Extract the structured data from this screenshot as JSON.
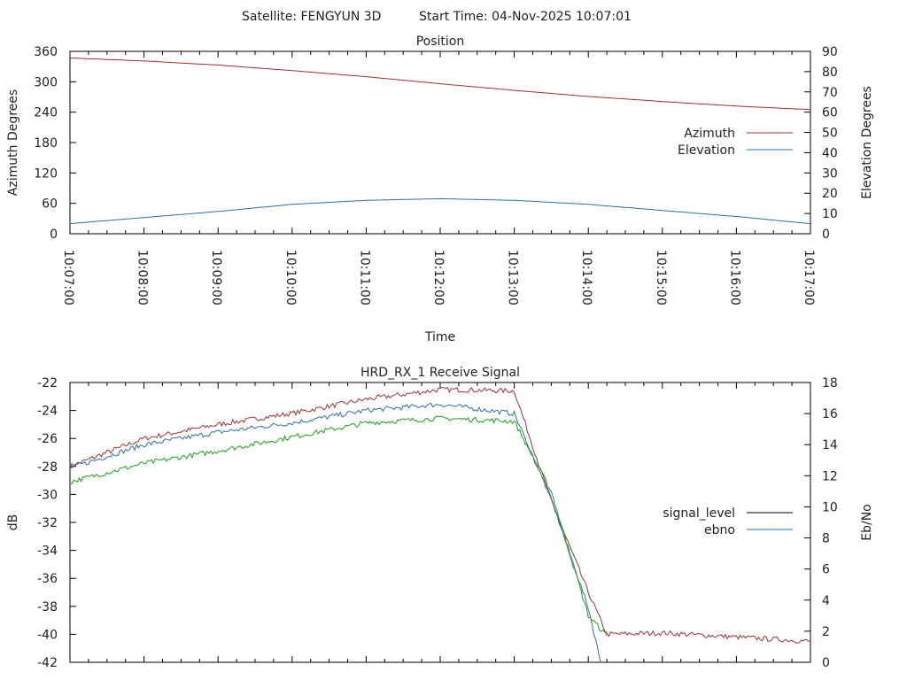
{
  "header": {
    "satellite": "Satellite: FENGYUN 3D",
    "start_time": "Start Time: 04-Nov-2025 10:07:01"
  },
  "chart_data": [
    {
      "type": "line",
      "title": "Position",
      "xlabel": "Time",
      "ylabel_left": "Azimuth Degrees",
      "ylabel_right": "Elevation Degrees",
      "x_ticks": [
        "10:07:00",
        "10:08:00",
        "10:09:00",
        "10:10:00",
        "10:11:00",
        "10:12:00",
        "10:13:00",
        "10:14:00",
        "10:15:00",
        "10:16:00",
        "10:17:00"
      ],
      "y_left_ticks": [
        "0",
        "60",
        "120",
        "180",
        "240",
        "300",
        "360"
      ],
      "y_right_ticks": [
        "0",
        "10",
        "20",
        "30",
        "40",
        "50",
        "60",
        "70",
        "80",
        "90"
      ],
      "ylim_left": [
        0,
        360
      ],
      "ylim_right": [
        0,
        90
      ],
      "x_range": [
        "10:07:00",
        "10:17:00"
      ],
      "grid": false,
      "legend_position": "right",
      "series": [
        {
          "name": "Azimuth",
          "axis": "left",
          "color": "#a03232",
          "x": [
            "10:07:00",
            "10:08:00",
            "10:09:00",
            "10:10:00",
            "10:11:00",
            "10:12:00",
            "10:13:00",
            "10:14:00",
            "10:15:00",
            "10:16:00",
            "10:17:00"
          ],
          "values": [
            347,
            341,
            333,
            322,
            310,
            296,
            283,
            271,
            261,
            252,
            245
          ]
        },
        {
          "name": "Elevation",
          "axis": "right",
          "color": "#2f6fa0",
          "x": [
            "10:07:00",
            "10:08:00",
            "10:09:00",
            "10:10:00",
            "10:11:00",
            "10:12:00",
            "10:13:00",
            "10:14:00",
            "10:15:00",
            "10:16:00",
            "10:17:00"
          ],
          "values": [
            5,
            8,
            11,
            14.5,
            16.5,
            17.3,
            16.5,
            14.5,
            11.5,
            8.5,
            5
          ]
        }
      ]
    },
    {
      "type": "line",
      "title": "HRD_RX_1 Receive Signal",
      "ylabel_left": "dB",
      "ylabel_right": "Eb/No",
      "y_left_ticks": [
        "-22",
        "-24",
        "-26",
        "-28",
        "-30",
        "-32",
        "-34",
        "-36",
        "-38",
        "-40",
        "-42"
      ],
      "y_right_ticks": [
        "0",
        "2",
        "4",
        "6",
        "8",
        "10",
        "12",
        "14",
        "16",
        "18"
      ],
      "ylim_left": [
        -42,
        -22
      ],
      "ylim_right": [
        0,
        18
      ],
      "x_range": [
        "10:07:00",
        "10:17:00"
      ],
      "grid": false,
      "legend_position": "right",
      "legend": [
        {
          "name": "signal_level",
          "color": "#000000"
        },
        {
          "name": "ebno",
          "color": "#2f6fa0"
        }
      ],
      "series": [
        {
          "name": "signal_level",
          "axis": "left",
          "color": "#a03232",
          "x": [
            "10:07:00",
            "10:08:00",
            "10:09:00",
            "10:10:00",
            "10:11:00",
            "10:12:00",
            "10:13:00",
            "10:13:30",
            "10:14:00",
            "10:14:15",
            "10:15:00",
            "10:16:00",
            "10:17:00"
          ],
          "values": [
            -28.0,
            -26.0,
            -25.0,
            -24.2,
            -23.2,
            -22.5,
            -22.6,
            -30.5,
            -37.0,
            -40.0,
            -39.9,
            -40.2,
            -40.5
          ]
        },
        {
          "name": "ebno",
          "axis": "right",
          "color": "#2f6fa0",
          "x": [
            "10:07:00",
            "10:08:00",
            "10:09:00",
            "10:10:00",
            "10:11:00",
            "10:12:00",
            "10:13:00",
            "10:13:30",
            "10:14:00",
            "10:14:10"
          ],
          "values": [
            12.5,
            14.0,
            14.8,
            15.4,
            16.2,
            16.6,
            16.0,
            10.5,
            3.5,
            0
          ]
        },
        {
          "name": "ebno",
          "axis": "right",
          "color": "#1aa01a",
          "x": [
            "10:07:00",
            "10:08:00",
            "10:09:00",
            "10:10:00",
            "10:11:00",
            "10:12:00",
            "10:13:00",
            "10:13:30",
            "10:14:00",
            "10:14:15"
          ],
          "values": [
            11.6,
            12.8,
            13.6,
            14.5,
            15.4,
            15.7,
            15.5,
            11.0,
            3.0,
            1.7
          ]
        }
      ]
    }
  ]
}
